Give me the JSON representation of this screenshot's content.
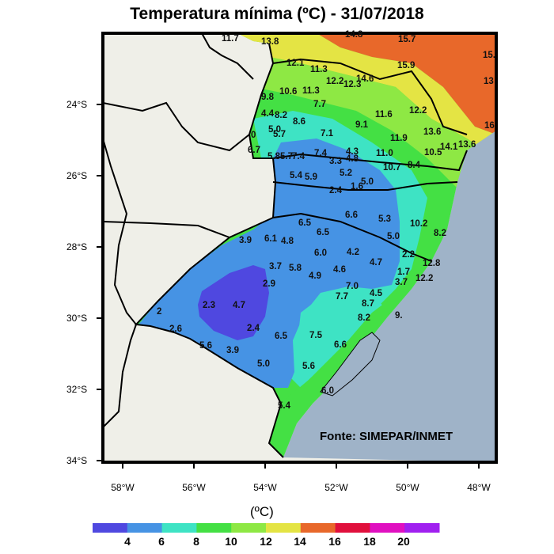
{
  "title": "Temperatura mínima (ºC) - 31/07/2018",
  "source_label": "Fonte: SIMEPAR/INMET",
  "axes": {
    "lat_ticks": [
      "24°S",
      "26°S",
      "28°S",
      "30°S",
      "32°S",
      "34°S"
    ],
    "lon_ticks": [
      "58°W",
      "56°W",
      "54°W",
      "52°W",
      "50°W",
      "48°W"
    ]
  },
  "colorbar": {
    "unit": "(ºC)",
    "ticks": [
      "4",
      "6",
      "8",
      "10",
      "12",
      "14",
      "16",
      "18",
      "20"
    ],
    "colors": [
      "#4f48e0",
      "#4693e4",
      "#3ee3c4",
      "#44e044",
      "#8ee844",
      "#e4e444",
      "#e8682a",
      "#e0103c",
      "#e010c0",
      "#a020f0"
    ]
  },
  "colors": {
    "land_outside": "#efefe8",
    "ocean": "#9fb3c8",
    "border": "#000000"
  },
  "station_values": [
    "11.7",
    "13.8",
    "14.8",
    "15.7",
    "15.9",
    "15.",
    "13",
    "16",
    "12.1",
    "11.3",
    "12.2",
    "12.3",
    "14.6",
    "10.6",
    "11.3",
    "9.8",
    "7.7",
    "4.4",
    "8.2",
    "8.6",
    "11.6",
    "12.2",
    "9.1",
    "13.6",
    "0",
    "5.0",
    "5.7",
    "7.1",
    "11.9",
    "6.7",
    "5.8",
    "5.7",
    "7.4",
    "7.4",
    "4.3",
    "3.3",
    "4.8",
    "11.0",
    "10.7",
    "8.4",
    "10.5",
    "14.1",
    "13.6",
    "5.4",
    "5.9",
    "5.2",
    "1.6",
    "5.0",
    "2.4",
    "6.6",
    "5.3",
    "10.2",
    "6.5",
    "6.5",
    "3.9",
    "6.1",
    "4.8",
    "5.0",
    "8.2",
    "4.2",
    "6.0",
    "2.2",
    "4.7",
    "3.7",
    "5.8",
    "4.9",
    "4.6",
    "1.7",
    "12.8",
    "12.2",
    "3.7",
    "2.9",
    "7.0",
    "2.3",
    "4.7",
    "7.7",
    "4.5",
    "8.7",
    "8.2",
    "9.",
    "2",
    "2.6",
    "2.4",
    "6.5",
    "7.5",
    "6.6",
    "5.6",
    "3.9",
    "5.0",
    "5.6",
    "6.0",
    "5.4"
  ]
}
